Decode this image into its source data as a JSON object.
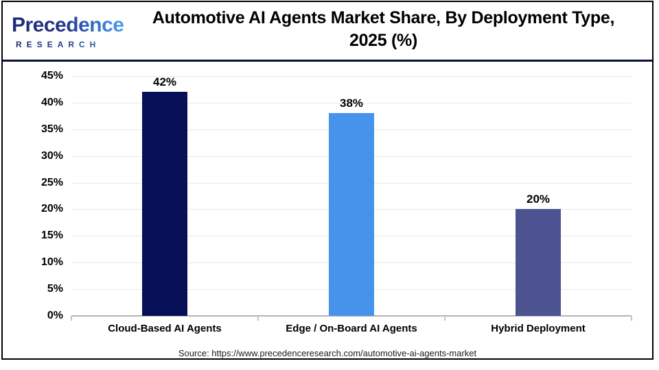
{
  "brand": {
    "name": "Precedence",
    "subname": "RESEARCH",
    "icon": "leaf-p-logo",
    "color_dark": "#1f2b76",
    "color_light": "#4aa0e8"
  },
  "header": {
    "title_line1": "Automotive AI Agents Market Share, By Deployment Type,",
    "title_line2": "2025 (%)"
  },
  "chart_data": {
    "type": "bar",
    "title": "Automotive AI Agents Market Share, By Deployment Type, 2025 (%)",
    "categories": [
      "Cloud-Based AI Agents",
      "Edge / On-Board AI Agents",
      "Hybrid Deployment"
    ],
    "values": [
      42,
      38,
      20
    ],
    "value_labels": [
      "42%",
      "38%",
      "20%"
    ],
    "bar_colors": [
      "#071056",
      "#4793ec",
      "#4d5391"
    ],
    "xlabel": "",
    "ylabel": "",
    "ylim": [
      0,
      45
    ],
    "ytick_step": 5,
    "ytick_labels": [
      "0%",
      "5%",
      "10%",
      "15%",
      "20%",
      "25%",
      "30%",
      "35%",
      "40%",
      "45%"
    ],
    "grid": true,
    "legend_position": "none",
    "gridline_color": "#e9e9e9",
    "axis_line_color": "#b3b3b3"
  },
  "footer": {
    "source_text": "Source: https://www.precedenceresearch.com/automotive-ai-agents-market"
  }
}
